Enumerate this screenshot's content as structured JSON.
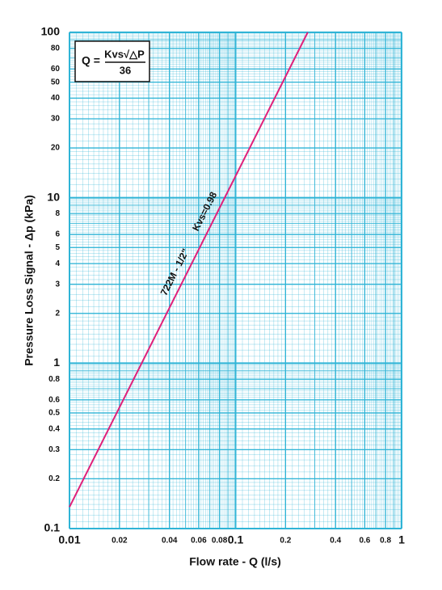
{
  "chart_data": {
    "type": "line",
    "xlabel": "Flow rate - Q (l/s)",
    "ylabel": "Pressure Loss Signal  - Δp (kPa)",
    "log_x": true,
    "log_y": true,
    "grid": true,
    "xlim": [
      0.01,
      1
    ],
    "ylim": [
      0.1,
      100
    ],
    "xticks": [
      0.01,
      0.02,
      0.04,
      0.06,
      0.08,
      0.1,
      0.2,
      0.4,
      0.6,
      0.8,
      1
    ],
    "yticks": [
      0.1,
      0.2,
      0.3,
      0.4,
      0.5,
      0.6,
      0.8,
      1,
      2,
      3,
      4,
      5,
      6,
      8,
      10,
      20,
      30,
      40,
      50,
      60,
      80,
      100
    ],
    "grid_color": "#2fb4d6",
    "formula": {
      "lhs": "Q =",
      "numerator": "Kvs√△P",
      "denominator": "36"
    },
    "series": [
      {
        "name": "722M - 1/2\"",
        "color": "#e0207a",
        "x": [
          0.01,
          0.272
        ],
        "y": [
          0.135,
          100
        ]
      }
    ],
    "annotations": [
      "722M - 1/2\"",
      "Kvs=0.98"
    ]
  }
}
